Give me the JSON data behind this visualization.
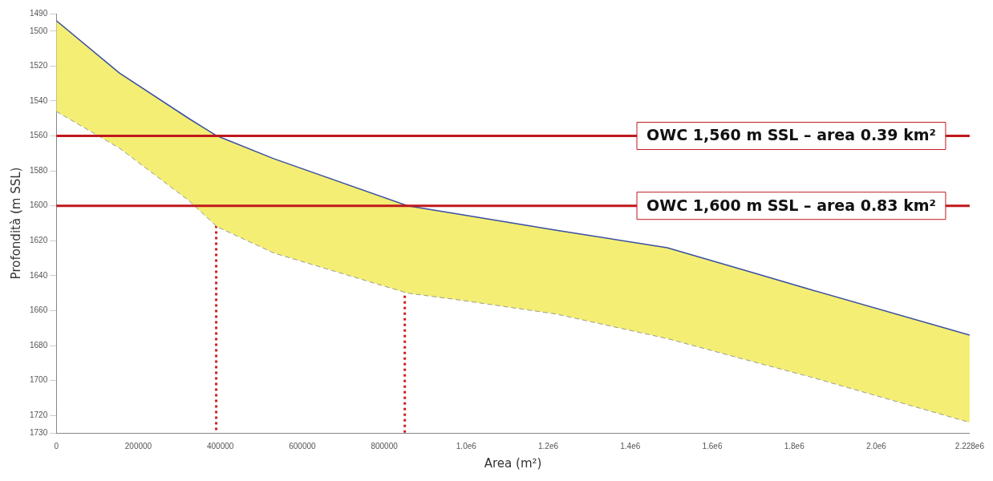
{
  "chart_data": {
    "type": "line",
    "xlabel": "Area (m²)",
    "ylabel": "Profondità (m SSL)",
    "xlim": [
      0,
      2228000
    ],
    "ylim": [
      1730,
      1490
    ],
    "xticks": [
      0,
      200000,
      400000,
      600000,
      800000,
      {
        "value": 1000000,
        "label": "1.0e6"
      },
      {
        "value": 1200000,
        "label": "1.2e6"
      },
      {
        "value": 1400000,
        "label": "1.4e6"
      },
      {
        "value": 1600000,
        "label": "1.6e6"
      },
      {
        "value": 1800000,
        "label": "1.8e6"
      },
      {
        "value": 2000000,
        "label": "2.0e6"
      },
      {
        "value": 2228000,
        "label": "2.228e6"
      }
    ],
    "yticks": [
      1490,
      1500,
      1520,
      1540,
      1560,
      1580,
      1600,
      1620,
      1640,
      1660,
      1680,
      1700,
      1720,
      1730
    ],
    "series": [
      {
        "type": "line",
        "color": "#3a4fa0",
        "line_style": "solid",
        "x": [
          0,
          154000,
          323000,
          392000,
          530000,
          857000,
          986000,
          1220000,
          1490000,
          1680000,
          1840000,
          2228000
        ],
        "values": [
          1494,
          1524,
          1550,
          1560,
          1573,
          1600,
          1605,
          1614,
          1624,
          1637,
          1648,
          1674
        ]
      },
      {
        "type": "area",
        "color": "#f4ee74",
        "line_style": "dashed",
        "x": [
          0,
          154000,
          323000,
          392000,
          530000,
          857000,
          986000,
          1220000,
          1490000,
          1680000,
          1840000,
          2228000
        ],
        "values": [
          1546,
          1567,
          1597,
          1612,
          1627,
          1650,
          1654,
          1662,
          1676,
          1688,
          1698,
          1724
        ]
      },
      {
        "type": "line",
        "color": "#cc1f1f",
        "line_style": "dotted",
        "x": [
          390000,
          390000
        ],
        "values": [
          1560,
          1730
        ]
      },
      {
        "type": "line",
        "color": "#cc1f1f",
        "line_style": "dotted",
        "x": [
          850000,
          850000
        ],
        "values": [
          1600,
          1730
        ]
      }
    ],
    "ref_lines": [
      {
        "axis": "y",
        "value": 1560,
        "label": "OWC 1,560 m SSL – area 0.39 km²",
        "color": "#c0181c"
      },
      {
        "axis": "y",
        "value": 1600,
        "label": "OWC 1,600 m SSL – area 0.83 km²",
        "color": "#c0181c"
      }
    ],
    "legend": false,
    "grid": false
  }
}
